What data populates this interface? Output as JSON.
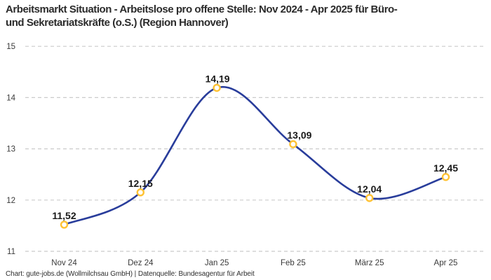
{
  "title_lines": [
    "Arbeitsmarkt Situation - Arbeitslose pro offene Stelle: Nov 2024 - Apr 2025 für Büro-",
    "und Sekretariatskräfte (o.S.) (Region Hannover)"
  ],
  "footer": "Chart: gute-jobs.de (Wollmilchsau GmbH) | Datenquelle: Bundesagentur für Arbeit",
  "colors": {
    "line": "#293d9b",
    "marker": "#ffc233",
    "marker_fill": "#ffffff",
    "grid": "#cbcbcb",
    "tick": "#3a3a3a",
    "data_label": "#1a1a1a",
    "title": "#2b2b2b"
  },
  "chart_data": {
    "type": "line",
    "title": "Arbeitsmarkt Situation - Arbeitslose pro offene Stelle: Nov 2024 - Apr 2025 für Büro- und Sekretariatskräfte (o.S.) (Region Hannover)",
    "categories": [
      "Nov 24",
      "Dez 24",
      "Jan 25",
      "Feb 25",
      "März 25",
      "Apr 25"
    ],
    "values": [
      11.52,
      12.15,
      14.19,
      13.09,
      12.04,
      12.45
    ],
    "value_labels": [
      "11,52",
      "12,15",
      "14,19",
      "13,09",
      "12,04",
      "12,45"
    ],
    "label_offsets": [
      0,
      0,
      1,
      9,
      0,
      0
    ],
    "xlabel": "",
    "ylabel": "",
    "ylim": [
      11,
      15
    ],
    "yticks": [
      11,
      12,
      13,
      14,
      15
    ],
    "grid": "horizontal-dashed",
    "legend": "none",
    "smooth": true
  }
}
